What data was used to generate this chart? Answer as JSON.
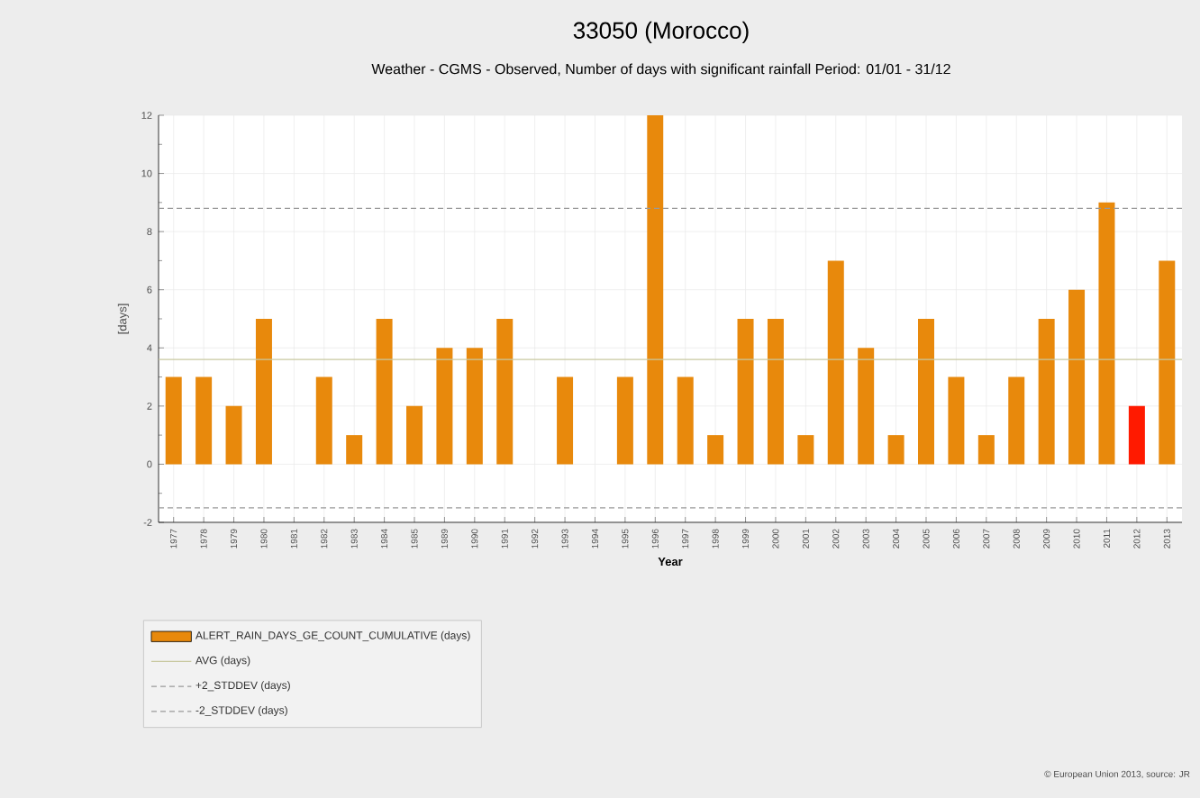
{
  "chart_data": {
    "type": "bar",
    "title": "33050 (Morocco)",
    "subtitle": "Weather - CGMS - Observed, Number of days with significant rainfall  Period: 01/01 - 31/12",
    "xlabel": "Year",
    "ylabel": "[days]",
    "categories": [
      "1977",
      "1978",
      "1979",
      "1980",
      "1981",
      "1982",
      "1983",
      "1984",
      "1985",
      "1989",
      "1990",
      "1991",
      "1992",
      "1993",
      "1994",
      "1995",
      "1996",
      "1997",
      "1998",
      "1999",
      "2000",
      "2001",
      "2002",
      "2003",
      "2004",
      "2005",
      "2006",
      "2007",
      "2008",
      "2009",
      "2010",
      "2011",
      "2012",
      "2013"
    ],
    "series": [
      {
        "name": "ALERT_RAIN_DAYS_GE_COUNT_CUMULATIVE (days)",
        "color": "#e8890c",
        "values": [
          3,
          3,
          2,
          5,
          0,
          3,
          1,
          5,
          2,
          4,
          4,
          5,
          0,
          3,
          0,
          3,
          12,
          3,
          1,
          5,
          5,
          1,
          7,
          4,
          1,
          5,
          3,
          1,
          3,
          5,
          6,
          9,
          2,
          7
        ],
        "colors": [
          "#e8890c",
          "#e8890c",
          "#e8890c",
          "#e8890c",
          "#e8890c",
          "#e8890c",
          "#e8890c",
          "#e8890c",
          "#e8890c",
          "#e8890c",
          "#e8890c",
          "#e8890c",
          "#e8890c",
          "#e8890c",
          "#e8890c",
          "#e8890c",
          "#e8890c",
          "#e8890c",
          "#e8890c",
          "#e8890c",
          "#e8890c",
          "#e8890c",
          "#e8890c",
          "#e8890c",
          "#e8890c",
          "#e8890c",
          "#e8890c",
          "#e8890c",
          "#e8890c",
          "#e8890c",
          "#e8890c",
          "#e8890c",
          "#ff1a00",
          "#e8890c"
        ]
      }
    ],
    "ref_lines": [
      {
        "axis": "y",
        "value": 3.6,
        "label": "AVG (days)",
        "color": "#c8c8a0",
        "line_style": "solid"
      },
      {
        "axis": "y",
        "value": 8.8,
        "label": "+2_STDDEV (days)",
        "color": "#999999",
        "line_style": "dashed"
      },
      {
        "axis": "y",
        "value": -1.5,
        "label": "-2_STDDEV (days)",
        "color": "#999999",
        "line_style": "dashed"
      }
    ],
    "ylim": [
      -2,
      12
    ],
    "yticks": [
      -2,
      0,
      2,
      4,
      6,
      8,
      10,
      12
    ],
    "grid": true,
    "legend": "bottom left",
    "annotations": [
      "© European Union 2013, source: JR"
    ]
  }
}
